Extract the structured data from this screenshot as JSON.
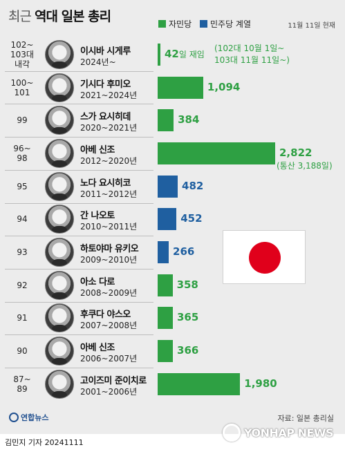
{
  "header": {
    "title_light": "최근",
    "title_bold": "역대 일본 총리",
    "as_of": "11월 11일 현재"
  },
  "legend": [
    {
      "label": "자민당",
      "color": "#2ea043"
    },
    {
      "label": "민주당 계열",
      "color": "#1f5fa0"
    }
  ],
  "footer": {
    "source": "자료: 일본 총리실",
    "agency": "연합뉴스",
    "byline": "김민지 기자  20241111",
    "watermark": "YONHAP NEWS"
  },
  "chart_data": {
    "type": "bar",
    "value_unit": "일",
    "rows": [
      {
        "number": "102~\n103대\n내각",
        "name": "이시바 시게루",
        "term": "2024년~",
        "party": "자민당",
        "value": 42,
        "label": "42",
        "label_suffix": "일 재임",
        "note": "(102대 10월 1일~\n103대 11월 11일~)"
      },
      {
        "number": "100~\n101",
        "name": "기시다 후미오",
        "term": "2021~2024년",
        "party": "자민당",
        "value": 1094,
        "label": "1,094"
      },
      {
        "number": "99",
        "name": "스가 요시히데",
        "term": "2020~2021년",
        "party": "자민당",
        "value": 384,
        "label": "384"
      },
      {
        "number": "96~\n98",
        "name": "아베 신조",
        "term": "2012~2020년",
        "party": "자민당",
        "value": 2822,
        "label": "2,822",
        "note": "(통산 3,188일)"
      },
      {
        "number": "95",
        "name": "노다 요시히코",
        "term": "2011~2012년",
        "party": "민주당 계열",
        "value": 482,
        "label": "482"
      },
      {
        "number": "94",
        "name": "간 나오토",
        "term": "2010~2011년",
        "party": "민주당 계열",
        "value": 452,
        "label": "452"
      },
      {
        "number": "93",
        "name": "하토야마 유키오",
        "term": "2009~2010년",
        "party": "민주당 계열",
        "value": 266,
        "label": "266"
      },
      {
        "number": "92",
        "name": "아소 다로",
        "term": "2008~2009년",
        "party": "자민당",
        "value": 358,
        "label": "358"
      },
      {
        "number": "91",
        "name": "후쿠다 야스오",
        "term": "2007~2008년",
        "party": "자민당",
        "value": 365,
        "label": "365"
      },
      {
        "number": "90",
        "name": "아베 신조",
        "term": "2006~2007년",
        "party": "자민당",
        "value": 366,
        "label": "366"
      },
      {
        "number": "87~\n89",
        "name": "고이즈미 준이치로",
        "term": "2001~2006년",
        "party": "자민당",
        "value": 1980,
        "label": "1,980"
      }
    ]
  }
}
